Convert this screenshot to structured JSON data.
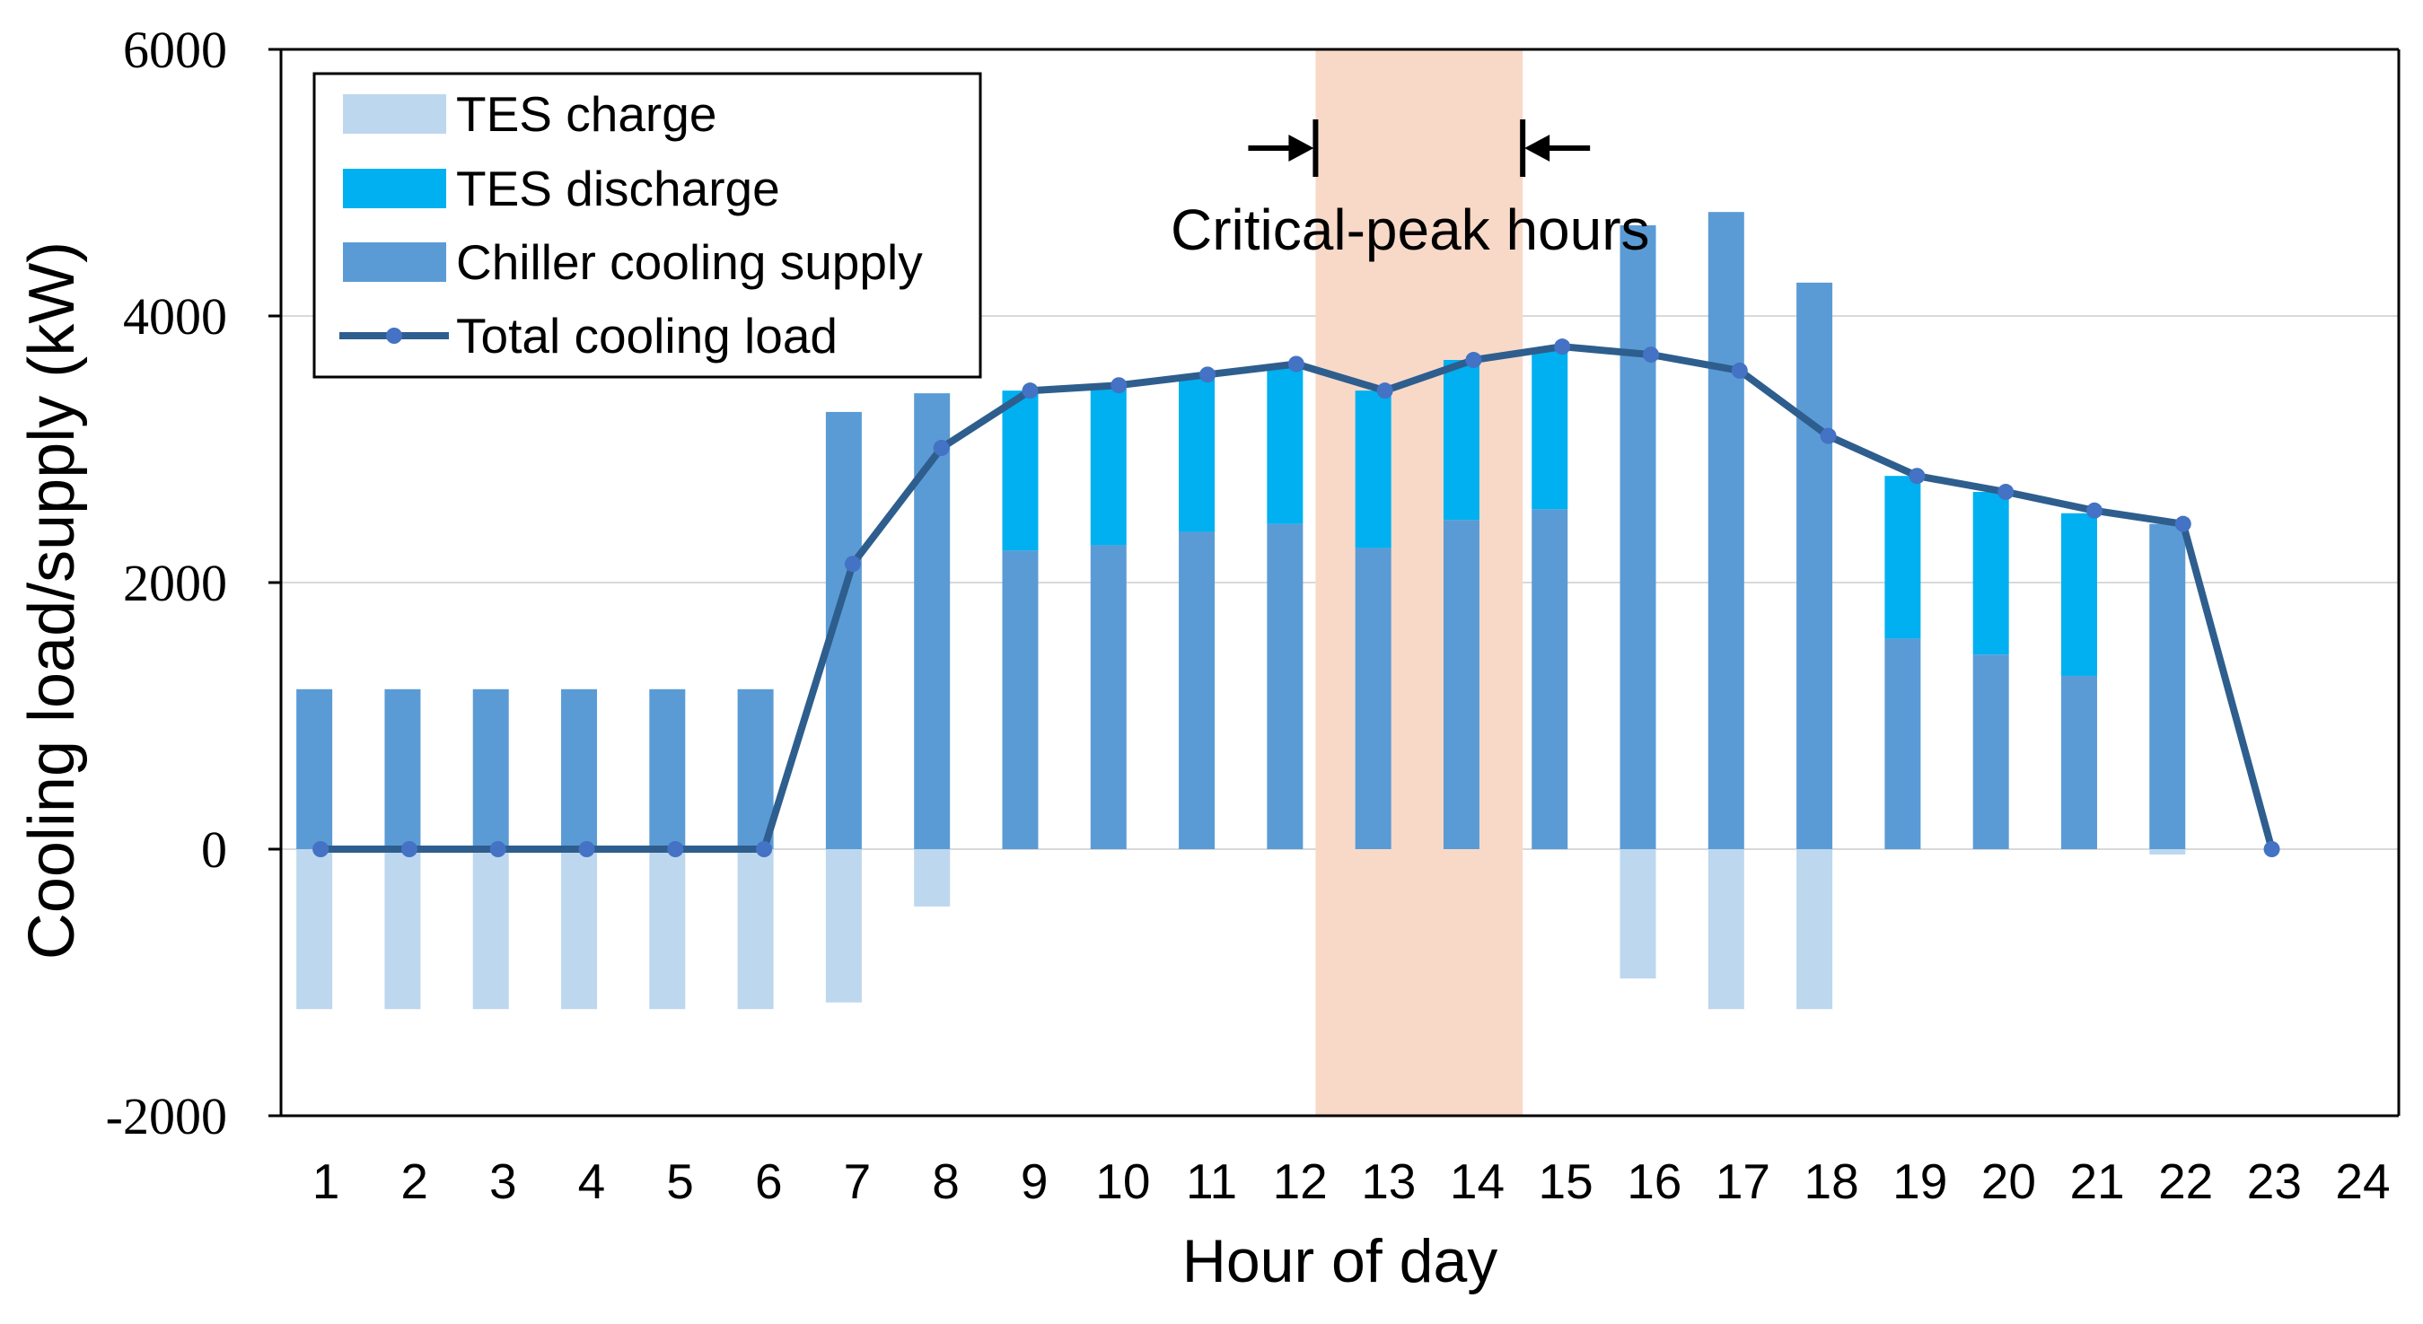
{
  "chart_data": {
    "type": "bar",
    "title": "",
    "xlabel": "Hour of day",
    "ylabel": "Cooling load/supply (kW)",
    "ylim": [
      -2000,
      6000
    ],
    "yticks": [
      -2000,
      0,
      2000,
      4000,
      6000
    ],
    "ytick_labels": [
      "-2000",
      "0",
      "2000",
      "4000",
      "6000"
    ],
    "grid": true,
    "legend_position": "top-left",
    "categories": [
      "1",
      "2",
      "3",
      "4",
      "5",
      "6",
      "7",
      "8",
      "9",
      "10",
      "11",
      "12",
      "13",
      "14",
      "15",
      "16",
      "17",
      "18",
      "19",
      "20",
      "21",
      "22",
      "23",
      "24"
    ],
    "series": [
      {
        "name": "TES charge",
        "kind": "bar",
        "color": "#bdd7ee",
        "values": [
          -1200,
          -1200,
          -1200,
          -1200,
          -1200,
          -1200,
          -1150,
          -430,
          0,
          0,
          0,
          0,
          0,
          0,
          0,
          -970,
          -1200,
          -1200,
          0,
          0,
          0,
          -40,
          0,
          0
        ]
      },
      {
        "name": "TES discharge",
        "kind": "bar",
        "color": "#00b0f0",
        "values": [
          0,
          0,
          0,
          0,
          0,
          0,
          0,
          0,
          1200,
          1180,
          1180,
          1200,
          1180,
          1200,
          1200,
          0,
          0,
          0,
          1220,
          1220,
          1220,
          0,
          0,
          0
        ]
      },
      {
        "name": "Chiller cooling supply",
        "kind": "bar",
        "color": "#5b9bd5",
        "values": [
          1200,
          1200,
          1200,
          1200,
          1200,
          1200,
          3280,
          3420,
          2240,
          2280,
          2380,
          2440,
          2260,
          2470,
          2550,
          4680,
          4780,
          4250,
          1580,
          1460,
          1300,
          2440,
          0,
          0
        ]
      },
      {
        "name": "Total cooling load",
        "kind": "line",
        "color": "#2e5e8e",
        "marker_color": "#4472c4",
        "values": [
          0,
          0,
          0,
          0,
          0,
          0,
          2140,
          3010,
          3440,
          3480,
          3560,
          3640,
          3440,
          3670,
          3770,
          3710,
          3590,
          3100,
          2800,
          2680,
          2540,
          2440,
          0,
          0
        ]
      }
    ],
    "annotations": [
      {
        "text": "Critical-peak hours",
        "type": "shaded-span",
        "span_hours": [
          13,
          14
        ],
        "color": "#f8d9c8"
      }
    ]
  }
}
